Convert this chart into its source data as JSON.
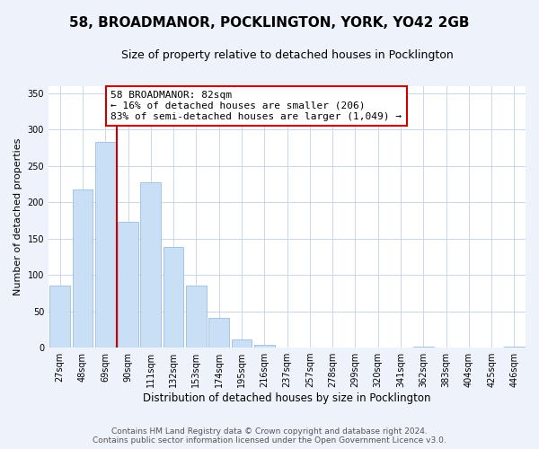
{
  "title": "58, BROADMANOR, POCKLINGTON, YORK, YO42 2GB",
  "subtitle": "Size of property relative to detached houses in Pocklington",
  "xlabel": "Distribution of detached houses by size in Pocklington",
  "ylabel": "Number of detached properties",
  "bar_labels": [
    "27sqm",
    "48sqm",
    "69sqm",
    "90sqm",
    "111sqm",
    "132sqm",
    "153sqm",
    "174sqm",
    "195sqm",
    "216sqm",
    "237sqm",
    "257sqm",
    "278sqm",
    "299sqm",
    "320sqm",
    "341sqm",
    "362sqm",
    "383sqm",
    "404sqm",
    "425sqm",
    "446sqm"
  ],
  "bar_values": [
    85,
    217,
    283,
    173,
    227,
    138,
    85,
    41,
    11,
    4,
    0,
    0,
    0,
    0,
    0,
    0,
    1,
    0,
    0,
    0,
    1
  ],
  "bar_color": "#c8dff5",
  "bar_edge_color": "#9bbde0",
  "vline_color": "#cc0000",
  "annotation_text": "58 BROADMANOR: 82sqm\n← 16% of detached houses are smaller (206)\n83% of semi-detached houses are larger (1,049) →",
  "annotation_box_color": "white",
  "annotation_box_edge_color": "#cc0000",
  "ylim": [
    0,
    360
  ],
  "yticks": [
    0,
    50,
    100,
    150,
    200,
    250,
    300,
    350
  ],
  "footer_line1": "Contains HM Land Registry data © Crown copyright and database right 2024.",
  "footer_line2": "Contains public sector information licensed under the Open Government Licence v3.0.",
  "background_color": "#eef2fb",
  "plot_background_color": "#ffffff",
  "title_fontsize": 11,
  "subtitle_fontsize": 9,
  "xlabel_fontsize": 8.5,
  "ylabel_fontsize": 8,
  "tick_fontsize": 7,
  "annotation_fontsize": 8,
  "footer_fontsize": 6.5
}
